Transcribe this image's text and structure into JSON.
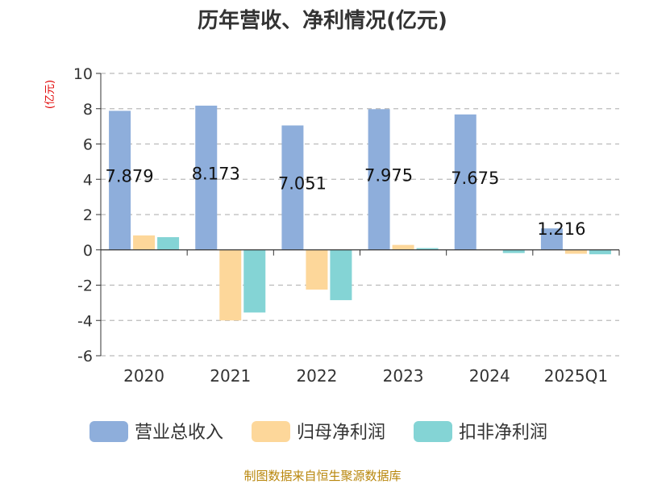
{
  "chart_data": {
    "type": "bar",
    "title": "历年营收、净利情况(亿元)",
    "ylabel": "(亿元)",
    "xlabel": "",
    "categories": [
      "2020",
      "2021",
      "2022",
      "2023",
      "2024",
      "2025Q1"
    ],
    "ylim": [
      -6,
      10
    ],
    "yticks": [
      10,
      8,
      6,
      4,
      2,
      0,
      -2,
      -4,
      -6
    ],
    "grid": true,
    "legend_position": "bottom",
    "series": [
      {
        "name": "营业总收入",
        "color": "#8eaedb",
        "values": [
          7.879,
          8.173,
          7.051,
          7.975,
          7.675,
          1.216
        ]
      },
      {
        "name": "归母净利润",
        "color": "#fdd79a",
        "values": [
          0.82,
          -4.0,
          -2.25,
          0.28,
          0.02,
          -0.22
        ]
      },
      {
        "name": "扣非净利润",
        "color": "#84d4d5",
        "values": [
          0.72,
          -3.55,
          -2.85,
          0.1,
          -0.18,
          -0.25
        ]
      }
    ],
    "data_labels": [
      "7.879",
      "8.173",
      "7.051",
      "7.975",
      "7.675",
      "1.216"
    ]
  },
  "source": "制图数据来自恒生聚源数据库"
}
